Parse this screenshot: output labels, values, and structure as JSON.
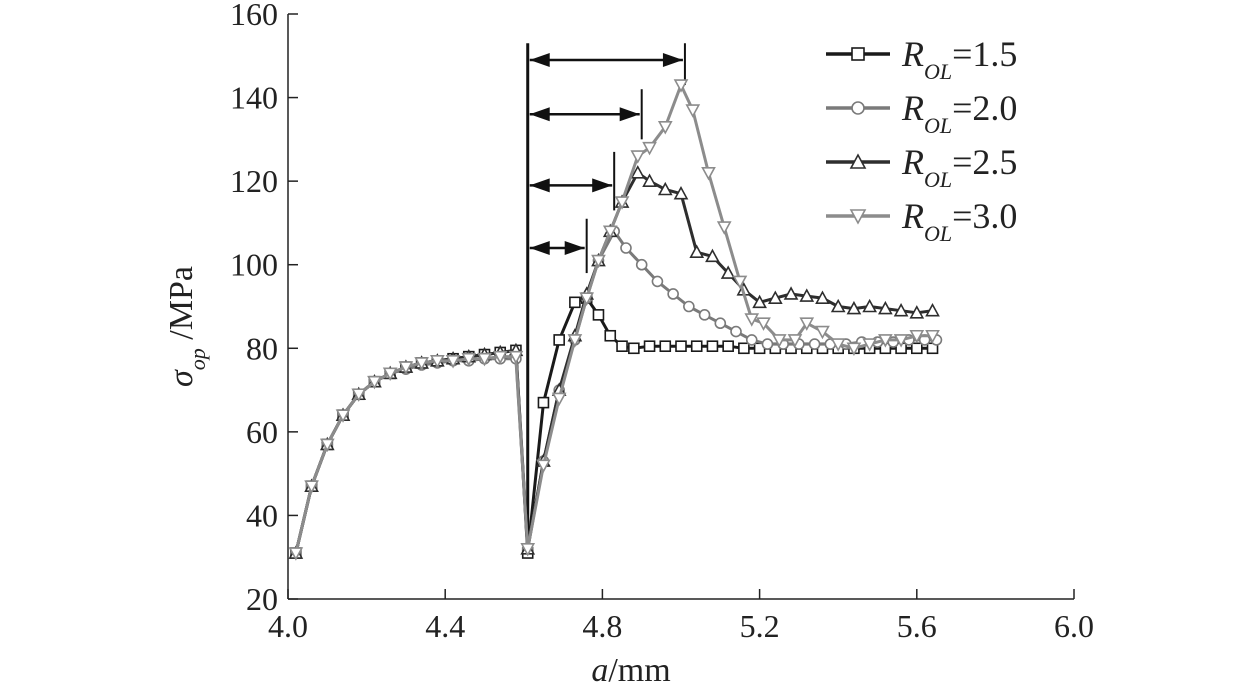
{
  "chart_data": {
    "type": "line",
    "xlabel": {
      "italic": "a",
      "rest": "/mm"
    },
    "ylabel": {
      "main": "σ",
      "sub": "op",
      "rest": " /MPa"
    },
    "xlim": [
      4.0,
      6.0
    ],
    "ylim": [
      20,
      160
    ],
    "xticks": [
      "4.0",
      "4.4",
      "4.8",
      "5.2",
      "5.6",
      "6.0"
    ],
    "xtick_values": [
      4.0,
      4.4,
      4.8,
      5.2,
      5.6,
      6.0
    ],
    "yticks": [
      "20",
      "40",
      "60",
      "80",
      "100",
      "120",
      "140",
      "160"
    ],
    "ytick_values": [
      20,
      40,
      60,
      80,
      100,
      120,
      140,
      160
    ],
    "legend_placement": "top-right",
    "colors": {
      "axis": "#222222",
      "s15": "#1a1a1a",
      "s20": "#7a7a7a",
      "s25": "#2e2e2e",
      "s30": "#8c8c8c",
      "annotation": "#111111"
    },
    "series": [
      {
        "name": {
          "base": "R",
          "sub": "OL",
          "value": "=1.5"
        },
        "marker": "square",
        "color": "s15",
        "points": [
          [
            4.02,
            31
          ],
          [
            4.06,
            47
          ],
          [
            4.1,
            57
          ],
          [
            4.14,
            64
          ],
          [
            4.18,
            69
          ],
          [
            4.22,
            72
          ],
          [
            4.26,
            74
          ],
          [
            4.3,
            75.5
          ],
          [
            4.34,
            76.5
          ],
          [
            4.38,
            77
          ],
          [
            4.42,
            77.5
          ],
          [
            4.46,
            78
          ],
          [
            4.5,
            78.5
          ],
          [
            4.54,
            79
          ],
          [
            4.58,
            79.5
          ],
          [
            4.61,
            31
          ],
          [
            4.65,
            67
          ],
          [
            4.69,
            82
          ],
          [
            4.73,
            91
          ],
          [
            4.76,
            92
          ],
          [
            4.79,
            88
          ],
          [
            4.82,
            83
          ],
          [
            4.85,
            80.5
          ],
          [
            4.88,
            80
          ],
          [
            4.92,
            80.5
          ],
          [
            4.96,
            80.5
          ],
          [
            5.0,
            80.5
          ],
          [
            5.04,
            80.5
          ],
          [
            5.08,
            80.5
          ],
          [
            5.12,
            80.5
          ],
          [
            5.16,
            80
          ],
          [
            5.2,
            80
          ],
          [
            5.24,
            80
          ],
          [
            5.28,
            80
          ],
          [
            5.32,
            80
          ],
          [
            5.36,
            80
          ],
          [
            5.4,
            80
          ],
          [
            5.44,
            80
          ],
          [
            5.48,
            80
          ],
          [
            5.52,
            80
          ],
          [
            5.56,
            80
          ],
          [
            5.6,
            80
          ],
          [
            5.64,
            80
          ]
        ]
      },
      {
        "name": {
          "base": "R",
          "sub": "OL",
          "value": "=2.0"
        },
        "marker": "circle",
        "color": "s20",
        "points": [
          [
            4.02,
            31
          ],
          [
            4.06,
            47
          ],
          [
            4.1,
            57
          ],
          [
            4.14,
            64
          ],
          [
            4.18,
            69
          ],
          [
            4.22,
            72
          ],
          [
            4.26,
            74
          ],
          [
            4.3,
            75
          ],
          [
            4.34,
            76
          ],
          [
            4.38,
            76.5
          ],
          [
            4.42,
            77
          ],
          [
            4.46,
            77
          ],
          [
            4.5,
            77.5
          ],
          [
            4.54,
            77.5
          ],
          [
            4.58,
            77.5
          ],
          [
            4.61,
            32
          ],
          [
            4.65,
            53
          ],
          [
            4.69,
            70
          ],
          [
            4.73,
            82
          ],
          [
            4.76,
            92
          ],
          [
            4.79,
            101
          ],
          [
            4.83,
            108
          ],
          [
            4.86,
            104
          ],
          [
            4.9,
            100
          ],
          [
            4.94,
            96
          ],
          [
            4.98,
            93
          ],
          [
            5.02,
            90
          ],
          [
            5.06,
            88
          ],
          [
            5.1,
            86
          ],
          [
            5.14,
            84
          ],
          [
            5.18,
            82
          ],
          [
            5.22,
            81
          ],
          [
            5.26,
            81
          ],
          [
            5.3,
            81
          ],
          [
            5.34,
            81
          ],
          [
            5.38,
            81
          ],
          [
            5.42,
            81
          ],
          [
            5.46,
            81.5
          ],
          [
            5.5,
            81.5
          ],
          [
            5.54,
            81.5
          ],
          [
            5.58,
            82
          ],
          [
            5.62,
            82
          ],
          [
            5.65,
            82
          ]
        ]
      },
      {
        "name": {
          "base": "R",
          "sub": "OL",
          "value": "=2.5"
        },
        "marker": "triangle-up",
        "color": "s25",
        "points": [
          [
            4.02,
            31
          ],
          [
            4.06,
            47
          ],
          [
            4.1,
            57
          ],
          [
            4.14,
            64
          ],
          [
            4.18,
            69
          ],
          [
            4.22,
            72
          ],
          [
            4.26,
            74
          ],
          [
            4.3,
            75.5
          ],
          [
            4.34,
            76.5
          ],
          [
            4.38,
            77
          ],
          [
            4.42,
            77.5
          ],
          [
            4.46,
            78
          ],
          [
            4.5,
            78.5
          ],
          [
            4.54,
            79
          ],
          [
            4.58,
            79.5
          ],
          [
            4.61,
            32
          ],
          [
            4.65,
            53
          ],
          [
            4.69,
            70
          ],
          [
            4.73,
            83
          ],
          [
            4.76,
            93
          ],
          [
            4.79,
            101
          ],
          [
            4.82,
            108
          ],
          [
            4.85,
            115
          ],
          [
            4.89,
            122
          ],
          [
            4.92,
            120
          ],
          [
            4.96,
            118
          ],
          [
            5.0,
            117
          ],
          [
            5.04,
            103
          ],
          [
            5.08,
            102
          ],
          [
            5.12,
            98
          ],
          [
            5.16,
            94
          ],
          [
            5.2,
            91
          ],
          [
            5.24,
            92
          ],
          [
            5.28,
            93
          ],
          [
            5.32,
            92.5
          ],
          [
            5.36,
            92
          ],
          [
            5.4,
            90
          ],
          [
            5.44,
            89.5
          ],
          [
            5.48,
            90
          ],
          [
            5.52,
            89.5
          ],
          [
            5.56,
            89
          ],
          [
            5.6,
            88.5
          ],
          [
            5.64,
            89
          ]
        ]
      },
      {
        "name": {
          "base": "R",
          "sub": "OL",
          "value": "=3.0"
        },
        "marker": "triangle-down",
        "color": "s30",
        "points": [
          [
            4.02,
            31
          ],
          [
            4.06,
            47
          ],
          [
            4.1,
            57
          ],
          [
            4.14,
            64
          ],
          [
            4.18,
            69
          ],
          [
            4.22,
            72
          ],
          [
            4.26,
            74
          ],
          [
            4.3,
            75.5
          ],
          [
            4.34,
            76.5
          ],
          [
            4.38,
            77
          ],
          [
            4.42,
            77
          ],
          [
            4.46,
            77.5
          ],
          [
            4.5,
            77.5
          ],
          [
            4.54,
            78
          ],
          [
            4.58,
            78
          ],
          [
            4.61,
            32
          ],
          [
            4.65,
            52
          ],
          [
            4.69,
            68
          ],
          [
            4.73,
            82
          ],
          [
            4.76,
            92
          ],
          [
            4.79,
            101
          ],
          [
            4.82,
            108
          ],
          [
            4.85,
            115
          ],
          [
            4.89,
            126
          ],
          [
            4.92,
            128
          ],
          [
            4.96,
            133
          ],
          [
            5.0,
            143
          ],
          [
            5.03,
            137
          ],
          [
            5.07,
            122
          ],
          [
            5.11,
            109
          ],
          [
            5.15,
            96
          ],
          [
            5.18,
            87
          ],
          [
            5.21,
            86
          ],
          [
            5.25,
            82
          ],
          [
            5.29,
            82
          ],
          [
            5.32,
            86
          ],
          [
            5.36,
            84
          ],
          [
            5.4,
            81
          ],
          [
            5.44,
            80
          ],
          [
            5.48,
            81
          ],
          [
            5.52,
            82
          ],
          [
            5.56,
            82
          ],
          [
            5.6,
            83
          ],
          [
            5.64,
            83
          ]
        ]
      }
    ],
    "annotations": {
      "vertical_line": {
        "x": 4.61,
        "y_from": 32,
        "y_to": 153
      },
      "arrows": [
        {
          "x_from": 4.61,
          "x_to": 4.76,
          "y": 104,
          "tick_y_to": 111
        },
        {
          "x_from": 4.61,
          "x_to": 4.83,
          "y": 119,
          "tick_y_to": 127
        },
        {
          "x_from": 4.61,
          "x_to": 4.9,
          "y": 136,
          "tick_y_to": 142
        },
        {
          "x_from": 4.61,
          "x_to": 5.01,
          "y": 149,
          "tick_y_to": 153
        }
      ]
    }
  }
}
